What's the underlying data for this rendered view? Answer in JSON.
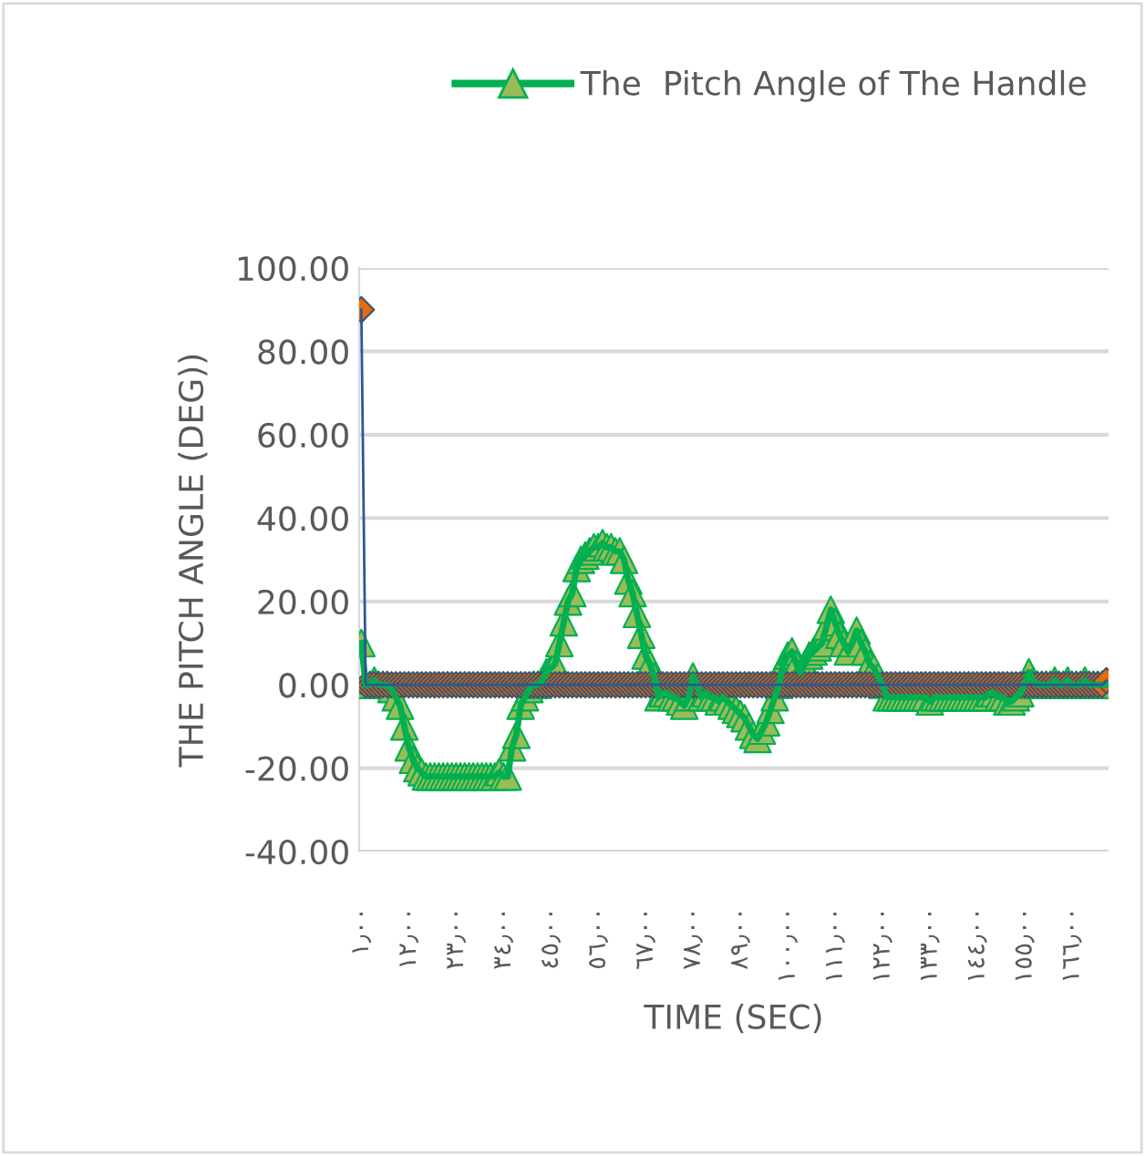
{
  "chart_data": {
    "type": "line",
    "ylabel": "THE PITCH ANGLE (DEG))",
    "xlabel": "TIME (SEC)",
    "categories": [
      "١٫٠٠",
      null,
      null,
      null,
      null,
      null,
      null,
      null,
      null,
      null,
      null,
      "١٢٫٠٠",
      null,
      null,
      null,
      null,
      null,
      null,
      null,
      null,
      null,
      null,
      "٢٣٫٠٠",
      null,
      null,
      null,
      null,
      null,
      null,
      null,
      null,
      null,
      null,
      "٣٤٫٠٠",
      null,
      null,
      null,
      null,
      null,
      null,
      null,
      null,
      null,
      null,
      "٤٥٫٠٠",
      null,
      null,
      null,
      null,
      null,
      null,
      null,
      null,
      null,
      null,
      "٥٦٫٠٠",
      null,
      null,
      null,
      null,
      null,
      null,
      null,
      null,
      null,
      null,
      "٦٧٫٠٠",
      null,
      null,
      null,
      null,
      null,
      null,
      null,
      null,
      null,
      null,
      "٧٨٫٠٠",
      null,
      null,
      null,
      null,
      null,
      null,
      null,
      null,
      null,
      null,
      "٨٩٫٠٠",
      null,
      null,
      null,
      null,
      null,
      null,
      null,
      null,
      null,
      null,
      "١٠٠٫٠٠",
      null,
      null,
      null,
      null,
      null,
      null,
      null,
      null,
      null,
      null,
      "١١١٫٠٠",
      null,
      null,
      null,
      null,
      null,
      null,
      null,
      null,
      null,
      null,
      "١٢٢٫٠٠",
      null,
      null,
      null,
      null,
      null,
      null,
      null,
      null,
      null,
      null,
      "١٣٣٫٠٠",
      null,
      null,
      null,
      null,
      null,
      null,
      null,
      null,
      null,
      null,
      "١٤٤٫٠٠",
      null,
      null,
      null,
      null,
      null,
      null,
      null,
      null,
      null,
      null,
      "١٥٥٫٠٠",
      null,
      null,
      null,
      null,
      null,
      null,
      null,
      null,
      null,
      null,
      "١٦٦٫٠٠",
      null,
      null,
      null,
      null,
      null,
      null,
      null,
      null
    ],
    "ylim": [
      -40,
      100
    ],
    "yticks": [
      {
        "value": -40,
        "label": "-40.00"
      },
      {
        "value": -20,
        "label": "-20.00"
      },
      {
        "value": 0,
        "label": "0.00"
      },
      {
        "value": 20,
        "label": "20.00"
      },
      {
        "value": 40,
        "label": "40.00"
      },
      {
        "value": 60,
        "label": "60.00"
      },
      {
        "value": 80,
        "label": "80.00"
      },
      {
        "value": 100,
        "label": "100.00"
      }
    ],
    "grid": "y",
    "legend": "top",
    "line_style": "solid",
    "series": [
      {
        "name": "The  Pitch Angle of The Handle",
        "color": "#9bbb59",
        "marker": "triangle",
        "values": [
          10,
          0,
          0,
          1,
          0,
          0,
          0,
          -1,
          -3,
          -5,
          -10,
          -15,
          -18,
          -20,
          -21,
          -22,
          -22,
          -22,
          -22,
          -22,
          -22,
          -22,
          -22,
          -22,
          -22,
          -22,
          -22,
          -22,
          -22,
          -22,
          -22,
          -22,
          -21,
          -22,
          -22,
          -15,
          -12,
          -5,
          -3,
          -1,
          0,
          0,
          1,
          3,
          4,
          5,
          10,
          15,
          20,
          22,
          28,
          30,
          31,
          32,
          33,
          33,
          34,
          33,
          33,
          32,
          32,
          30,
          25,
          22,
          17,
          12,
          7,
          5,
          2,
          -3,
          -2,
          -2,
          -3,
          -3,
          -4,
          -5,
          -3,
          2,
          0,
          -3,
          -2,
          -3,
          -3,
          -4,
          -3,
          -4,
          -5,
          -6,
          -7,
          -8,
          -10,
          -12,
          -13,
          -11,
          -9,
          -6,
          -3,
          0,
          5,
          7,
          8,
          5,
          3,
          5,
          7,
          8,
          9,
          10,
          14,
          18,
          15,
          12,
          10,
          8,
          10,
          13,
          10,
          8,
          5,
          4,
          2,
          0,
          -3,
          -3,
          -3,
          -3,
          -3,
          -3,
          -3,
          -3,
          -3,
          -3,
          -4,
          -3,
          -3,
          -3,
          -3,
          -3,
          -3,
          -3,
          -3,
          -3,
          -3,
          -3,
          -3,
          -3,
          -2,
          -2,
          -3,
          -3,
          -4,
          -4,
          -3,
          -2,
          0,
          3,
          1,
          0,
          0,
          0,
          0,
          1,
          0,
          0,
          1,
          0,
          0,
          0,
          1,
          0,
          0,
          0,
          0,
          0
        ]
      },
      {
        "color": "#e46c0a",
        "marker": "diamond",
        "values": [
          90,
          0,
          0,
          0,
          0,
          0,
          0,
          0,
          0,
          0,
          0,
          0,
          0,
          0,
          0,
          0,
          0,
          0,
          0,
          0,
          0,
          0,
          0,
          0,
          0,
          0,
          0,
          0,
          0,
          0,
          0,
          0,
          0,
          0,
          0,
          0,
          0,
          0,
          0,
          0,
          0,
          0,
          0,
          0,
          0,
          0,
          0,
          0,
          0,
          0,
          0,
          0,
          0,
          0,
          0,
          0,
          0,
          0,
          0,
          0,
          0,
          0,
          0,
          0,
          0,
          0,
          0,
          0,
          0,
          0,
          0,
          0,
          0,
          0,
          0,
          0,
          0,
          0,
          0,
          0,
          0,
          0,
          0,
          0,
          0,
          0,
          0,
          0,
          0,
          0,
          0,
          0,
          0,
          0,
          0,
          0,
          0,
          0,
          0,
          0,
          0,
          0,
          0,
          0,
          0,
          0,
          0,
          0,
          0,
          0,
          0,
          0,
          0,
          0,
          0,
          0,
          0,
          0,
          0,
          0,
          0,
          0,
          0,
          0,
          0,
          0,
          0,
          0,
          0,
          0,
          0,
          0,
          0,
          0,
          0,
          0,
          0,
          0,
          0,
          0,
          0,
          0,
          0,
          0,
          0,
          0,
          0,
          0,
          0,
          0,
          0,
          0,
          0,
          0,
          0,
          0,
          0,
          0,
          0,
          0,
          0,
          0,
          0,
          0,
          0,
          0,
          0,
          0,
          0,
          0,
          0,
          0,
          0,
          1
        ]
      }
    ]
  }
}
